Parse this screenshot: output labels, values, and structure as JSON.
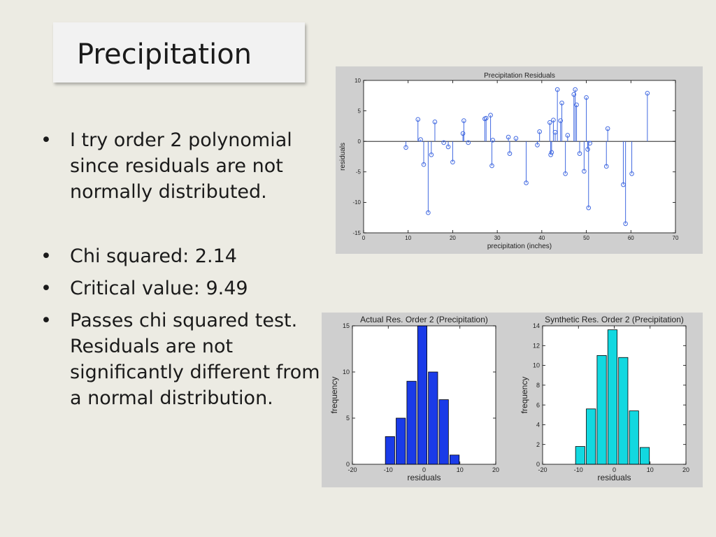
{
  "slide": {
    "title": "Precipitation",
    "bullets": [
      {
        "text": "I try order 2 polynomial since residuals are not normally distributed."
      },
      {
        "text": "Chi squared: 2.14"
      },
      {
        "text": "Critical value: 9.49"
      },
      {
        "text": "Passes chi squared test. Residuals are not significantly different from a normal distribution."
      }
    ]
  },
  "colors": {
    "stem": "#4169e1",
    "actual_bars": "#1a3be8",
    "synthetic_bars": "#12d8e0",
    "panel_bg": "#cfcfcf"
  },
  "chart_data": [
    {
      "type": "scatter",
      "style": "stem",
      "title": "Precipitation Residuals",
      "xlabel": "precipitation (inches)",
      "ylabel": "residuals",
      "xlim": [
        0,
        70
      ],
      "ylim": [
        -15,
        10
      ],
      "xticks": [
        0,
        10,
        20,
        30,
        40,
        50,
        60,
        70
      ],
      "yticks": [
        -15,
        -10,
        -5,
        0,
        5,
        10
      ],
      "grid": false,
      "x": [
        9.5,
        12.2,
        12.8,
        13.5,
        14.5,
        15.2,
        16,
        18,
        19,
        20,
        22.3,
        22.5,
        23.5,
        27.2,
        27.5,
        28.5,
        28.8,
        29,
        32.5,
        32.8,
        34.2,
        36.5,
        39,
        39.5,
        41.8,
        42,
        42.2,
        42.6,
        43,
        43.5,
        44.2,
        44.5,
        45.3,
        45.8,
        47.2,
        47.5,
        47.8,
        48.5,
        49.5,
        50,
        50.3,
        50.5,
        50.8,
        54.5,
        54.8,
        58.3,
        58.8,
        60.2,
        63.7
      ],
      "y": [
        -1,
        3.6,
        0.3,
        -3.8,
        -11.7,
        -2.2,
        3.2,
        -0.2,
        -0.9,
        -3.4,
        1.3,
        3.4,
        -0.2,
        3.7,
        3.8,
        4.3,
        -4,
        0.2,
        0.7,
        -2,
        0.5,
        -6.8,
        -0.6,
        1.6,
        3.1,
        -2.2,
        -1.8,
        3.5,
        1.5,
        8.5,
        3.4,
        6.3,
        -5.3,
        1,
        7.7,
        8.5,
        6,
        -2,
        -4.9,
        7.2,
        -1.3,
        -10.9,
        -0.3,
        -4.1,
        2.1,
        -7.1,
        -13.5,
        -5.3,
        7.9
      ]
    },
    {
      "type": "bar",
      "title": "Actual Res. Order 2 (Precipitation)",
      "xlabel": "residuals",
      "ylabel": "frequency",
      "xlim": [
        -20,
        20
      ],
      "ylim": [
        0,
        15
      ],
      "xticks": [
        -20,
        -10,
        0,
        10,
        20
      ],
      "yticks": [
        0,
        5,
        10,
        15
      ],
      "bin_width": 3,
      "categories": [
        -9.5,
        -6.5,
        -3.5,
        -0.5,
        2.5,
        5.5,
        8.5
      ],
      "values": [
        3,
        5,
        9,
        15,
        10,
        7,
        1
      ]
    },
    {
      "type": "bar",
      "title": "Synthetic Res. Order 2 (Precipitation)",
      "xlabel": "residuals",
      "ylabel": "frequency",
      "xlim": [
        -20,
        20
      ],
      "ylim": [
        0,
        14
      ],
      "xticks": [
        -20,
        -10,
        0,
        10,
        20
      ],
      "yticks": [
        0,
        2,
        4,
        6,
        8,
        10,
        12,
        14
      ],
      "bin_width": 3,
      "categories": [
        -9.5,
        -6.5,
        -3.5,
        -0.5,
        2.5,
        5.5,
        8.5
      ],
      "values": [
        1.8,
        5.6,
        11,
        13.6,
        10.8,
        5.4,
        1.7
      ]
    }
  ]
}
